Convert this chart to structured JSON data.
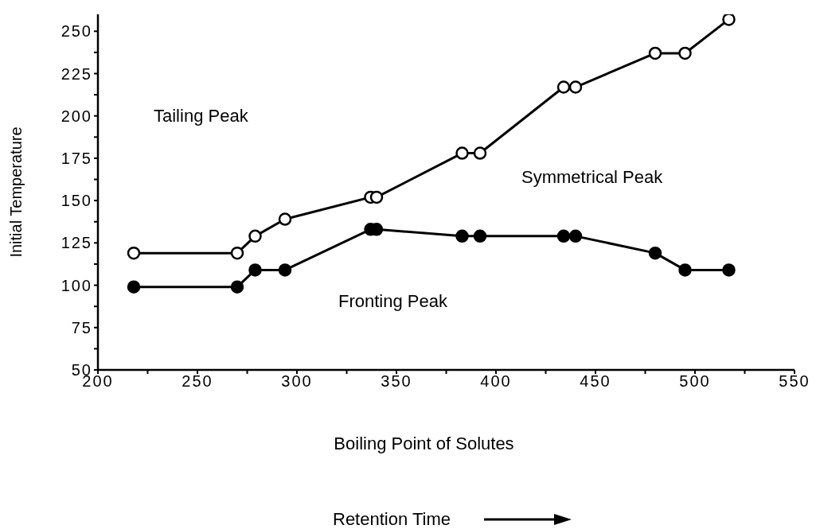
{
  "chart_data": {
    "type": "line",
    "xlabel": "Boiling Point of Solutes",
    "ylabel": "Initial Temperature",
    "x": [
      218,
      270,
      279,
      294,
      337,
      340,
      383,
      392,
      434,
      440,
      480,
      495,
      517
    ],
    "series": [
      {
        "color": "#000000",
        "values": [
          119,
          119,
          129,
          139,
          152,
          152,
          178,
          178,
          217,
          217,
          237,
          237,
          257
        ]
      },
      {
        "color": "#000000",
        "values": [
          99,
          99,
          109,
          109,
          133,
          133,
          129,
          129,
          129,
          129,
          119,
          109,
          109
        ]
      }
    ],
    "xlim": [
      200,
      550
    ],
    "xticks": [
      200,
      {
        "value": 225,
        "label": null
      },
      250,
      {
        "value": 275,
        "label": null
      },
      300,
      {
        "value": 325,
        "label": null
      },
      350,
      {
        "value": 375,
        "label": null
      },
      400,
      {
        "value": 425,
        "label": null
      },
      450,
      {
        "value": 475,
        "label": null
      },
      500,
      {
        "value": 525,
        "label": null
      },
      550
    ],
    "ylim": [
      50,
      260
    ],
    "yticks": [
      50,
      {
        "value": 62.5,
        "label": null
      },
      75,
      {
        "value": 87.5,
        "label": null
      },
      100,
      {
        "value": 112.5,
        "label": null
      },
      125,
      {
        "value": 137.5,
        "label": null
      },
      150,
      {
        "value": 162.5,
        "label": null
      },
      175,
      {
        "value": 187.5,
        "label": null
      },
      200,
      {
        "value": 212.5,
        "label": null
      },
      225,
      {
        "value": 237.5,
        "label": null
      },
      250
    ],
    "annotations": [
      "Tailing Peak",
      "Symmetrical Peak",
      "Fronting Peak",
      "Retention Time"
    ],
    "grid": false,
    "legend": false,
    "marker": "circle",
    "line_style": "solid"
  }
}
